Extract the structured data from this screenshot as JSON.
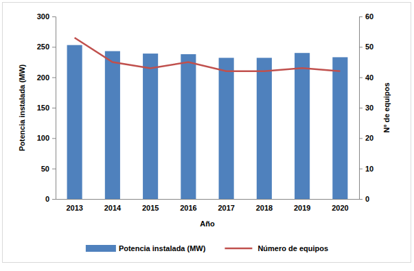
{
  "chart_data": {
    "type": "bar",
    "x_label": "Año",
    "y_label": "Potencia instalada (MW)",
    "y2_label": "Nº de equipos",
    "categories": [
      "2013",
      "2014",
      "2015",
      "2016",
      "2017",
      "2018",
      "2019",
      "2020"
    ],
    "series": [
      {
        "name": "Potencia instalada (MW)",
        "type": "bar",
        "color": "#4f81bd",
        "values": [
          253,
          243,
          239,
          238,
          232,
          232,
          240,
          233
        ]
      },
      {
        "name": "Número de equipos",
        "type": "line",
        "axis": "y2",
        "color": "#c0504d",
        "values": [
          53,
          45,
          43,
          45,
          42,
          42,
          43,
          42
        ]
      }
    ],
    "ylim": [
      0,
      300
    ],
    "yticks": [
      0,
      50,
      100,
      150,
      200,
      250,
      300
    ],
    "y2lim": [
      0,
      60
    ],
    "y2ticks": [
      0,
      10,
      20,
      30,
      40,
      50,
      60
    ],
    "grid": false,
    "legend": "bottom"
  }
}
